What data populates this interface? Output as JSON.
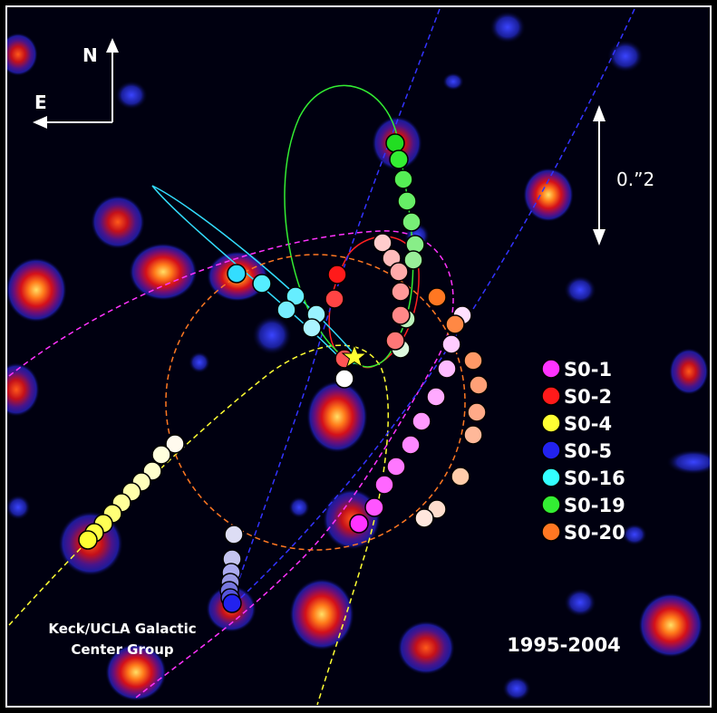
{
  "compass": {
    "north": "N",
    "east": "E"
  },
  "scale_bar": {
    "label": "0.”2"
  },
  "legend": {
    "items": [
      {
        "label": "S0-1",
        "color": "#ff33ff"
      },
      {
        "label": "S0-2",
        "color": "#ff1a1a"
      },
      {
        "label": "S0-4",
        "color": "#ffff33"
      },
      {
        "label": "S0-5",
        "color": "#2222ee"
      },
      {
        "label": "S0-16",
        "color": "#33ffff"
      },
      {
        "label": "S0-19",
        "color": "#33ee33"
      },
      {
        "label": "S0-20",
        "color": "#ff7722"
      }
    ]
  },
  "credit": {
    "line1": "Keck/UCLA Galactic",
    "line2": "Center Group"
  },
  "date_range": "1995-2004",
  "colors": {
    "background": "#000010",
    "s0_1": "#ff33ff",
    "s0_2": "#ff1a1a",
    "s0_4": "#ffff33",
    "s0_5": "#2222ee",
    "s0_16": "#33ffff",
    "s0_19": "#33ee33",
    "s0_20": "#ff7722",
    "central_star": "#ffff33"
  }
}
